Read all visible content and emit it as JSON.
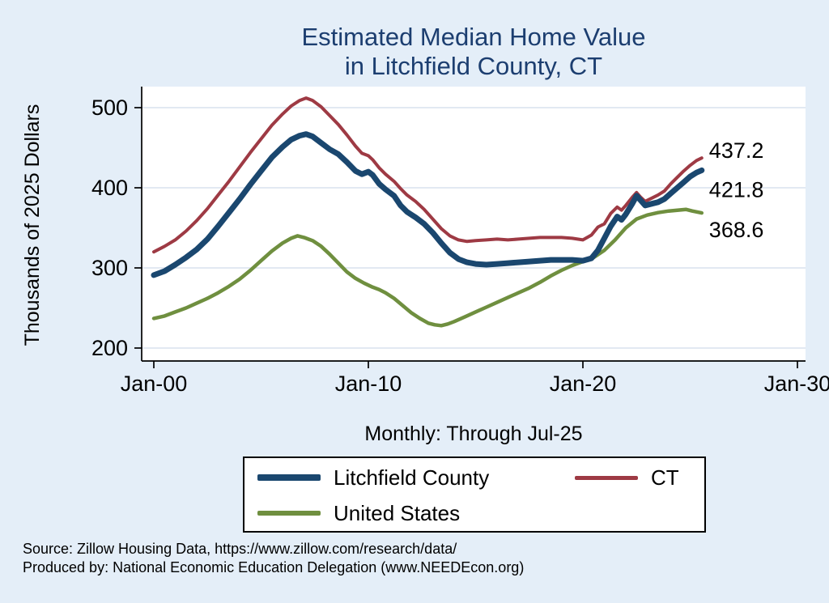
{
  "page": {
    "background": "#e4eef8"
  },
  "title": {
    "line1": "Estimated Median Home Value",
    "line2": "in Litchfield County, CT",
    "color": "#1c3e70"
  },
  "notes": {
    "line1": "Source: Zillow Housing Data, https://www.zillow.com/research/data/",
    "line2": "Produced by: National Economic Education Delegation (www.NEEDEcon.org)"
  },
  "chart_data": {
    "type": "line",
    "title": "Estimated Median Home Value in Litchfield County, CT",
    "subtitle": "Monthly: Through Jul-25",
    "ylabel": "Thousands of 2025 Dollars",
    "xlabel": "",
    "x_range_years": [
      2000,
      2030
    ],
    "y_ticks": [
      200,
      300,
      400,
      500
    ],
    "x_ticks": [
      {
        "year": 2000,
        "label": "Jan-00"
      },
      {
        "year": 2010,
        "label": "Jan-10"
      },
      {
        "year": 2020,
        "label": "Jan-20"
      },
      {
        "year": 2030,
        "label": "Jan-30"
      }
    ],
    "grid": "horizontal",
    "legend_position": "bottom",
    "series": [
      {
        "name": "Litchfield County",
        "color": "#1a476f",
        "line_width": 7,
        "end_label": "421.8",
        "points": [
          [
            2000.0,
            291
          ],
          [
            2000.5,
            296
          ],
          [
            2001.0,
            304
          ],
          [
            2001.5,
            313
          ],
          [
            2002.0,
            323
          ],
          [
            2002.5,
            336
          ],
          [
            2003.0,
            352
          ],
          [
            2003.5,
            369
          ],
          [
            2004.0,
            386
          ],
          [
            2004.5,
            404
          ],
          [
            2005.0,
            421
          ],
          [
            2005.5,
            438
          ],
          [
            2006.0,
            451
          ],
          [
            2006.4,
            460
          ],
          [
            2006.8,
            465
          ],
          [
            2007.1,
            467
          ],
          [
            2007.4,
            464
          ],
          [
            2007.8,
            456
          ],
          [
            2008.2,
            448
          ],
          [
            2008.6,
            442
          ],
          [
            2009.0,
            432
          ],
          [
            2009.4,
            421
          ],
          [
            2009.7,
            417
          ],
          [
            2010.0,
            420
          ],
          [
            2010.2,
            416
          ],
          [
            2010.5,
            405
          ],
          [
            2010.8,
            398
          ],
          [
            2011.2,
            390
          ],
          [
            2011.5,
            378
          ],
          [
            2011.8,
            370
          ],
          [
            2012.2,
            363
          ],
          [
            2012.6,
            355
          ],
          [
            2013.0,
            344
          ],
          [
            2013.4,
            331
          ],
          [
            2013.8,
            319
          ],
          [
            2014.2,
            311
          ],
          [
            2014.6,
            307
          ],
          [
            2015.0,
            305
          ],
          [
            2015.5,
            304
          ],
          [
            2016.0,
            305
          ],
          [
            2016.5,
            306
          ],
          [
            2017.0,
            307
          ],
          [
            2017.5,
            308
          ],
          [
            2018.0,
            309
          ],
          [
            2018.5,
            310
          ],
          [
            2019.0,
            310
          ],
          [
            2019.5,
            310
          ],
          [
            2020.0,
            309
          ],
          [
            2020.4,
            312
          ],
          [
            2020.7,
            322
          ],
          [
            2021.0,
            337
          ],
          [
            2021.3,
            352
          ],
          [
            2021.6,
            364
          ],
          [
            2021.8,
            360
          ],
          [
            2022.0,
            367
          ],
          [
            2022.3,
            380
          ],
          [
            2022.5,
            390
          ],
          [
            2022.7,
            384
          ],
          [
            2022.9,
            378
          ],
          [
            2023.2,
            380
          ],
          [
            2023.5,
            382
          ],
          [
            2023.8,
            386
          ],
          [
            2024.1,
            393
          ],
          [
            2024.4,
            400
          ],
          [
            2024.7,
            407
          ],
          [
            2025.0,
            414
          ],
          [
            2025.3,
            419
          ],
          [
            2025.54,
            421.8
          ]
        ]
      },
      {
        "name": "CT",
        "color": "#9e3a44",
        "line_width": 4,
        "end_label": "437.2",
        "points": [
          [
            2000.0,
            320
          ],
          [
            2000.5,
            327
          ],
          [
            2001.0,
            335
          ],
          [
            2001.5,
            346
          ],
          [
            2002.0,
            359
          ],
          [
            2002.5,
            374
          ],
          [
            2003.0,
            391
          ],
          [
            2003.5,
            408
          ],
          [
            2004.0,
            426
          ],
          [
            2004.5,
            444
          ],
          [
            2005.0,
            461
          ],
          [
            2005.5,
            478
          ],
          [
            2006.0,
            492
          ],
          [
            2006.4,
            502
          ],
          [
            2006.8,
            509
          ],
          [
            2007.1,
            512
          ],
          [
            2007.4,
            509
          ],
          [
            2007.8,
            501
          ],
          [
            2008.2,
            490
          ],
          [
            2008.6,
            479
          ],
          [
            2009.0,
            466
          ],
          [
            2009.4,
            452
          ],
          [
            2009.7,
            443
          ],
          [
            2010.0,
            440
          ],
          [
            2010.2,
            435
          ],
          [
            2010.5,
            425
          ],
          [
            2010.8,
            417
          ],
          [
            2011.2,
            408
          ],
          [
            2011.5,
            399
          ],
          [
            2011.8,
            391
          ],
          [
            2012.2,
            383
          ],
          [
            2012.6,
            373
          ],
          [
            2013.0,
            361
          ],
          [
            2013.4,
            349
          ],
          [
            2013.8,
            340
          ],
          [
            2014.2,
            335
          ],
          [
            2014.6,
            333
          ],
          [
            2015.0,
            334
          ],
          [
            2015.5,
            335
          ],
          [
            2016.0,
            336
          ],
          [
            2016.5,
            335
          ],
          [
            2017.0,
            336
          ],
          [
            2017.5,
            337
          ],
          [
            2018.0,
            338
          ],
          [
            2018.5,
            338
          ],
          [
            2019.0,
            338
          ],
          [
            2019.5,
            337
          ],
          [
            2020.0,
            335
          ],
          [
            2020.4,
            341
          ],
          [
            2020.7,
            351
          ],
          [
            2021.0,
            355
          ],
          [
            2021.3,
            368
          ],
          [
            2021.6,
            376
          ],
          [
            2021.8,
            372
          ],
          [
            2022.0,
            378
          ],
          [
            2022.3,
            388
          ],
          [
            2022.5,
            394
          ],
          [
            2022.7,
            388
          ],
          [
            2022.9,
            383
          ],
          [
            2023.2,
            387
          ],
          [
            2023.5,
            391
          ],
          [
            2023.8,
            396
          ],
          [
            2024.1,
            405
          ],
          [
            2024.4,
            413
          ],
          [
            2024.7,
            421
          ],
          [
            2025.0,
            428
          ],
          [
            2025.3,
            434
          ],
          [
            2025.54,
            437.2
          ]
        ]
      },
      {
        "name": "United States",
        "color": "#6f8f3f",
        "line_width": 4.5,
        "end_label": "368.6",
        "points": [
          [
            2000.0,
            237
          ],
          [
            2000.5,
            240
          ],
          [
            2001.0,
            245
          ],
          [
            2001.5,
            250
          ],
          [
            2002.0,
            256
          ],
          [
            2002.5,
            262
          ],
          [
            2003.0,
            269
          ],
          [
            2003.5,
            277
          ],
          [
            2004.0,
            286
          ],
          [
            2004.5,
            297
          ],
          [
            2005.0,
            309
          ],
          [
            2005.5,
            321
          ],
          [
            2006.0,
            331
          ],
          [
            2006.4,
            337
          ],
          [
            2006.7,
            340
          ],
          [
            2007.0,
            338
          ],
          [
            2007.4,
            334
          ],
          [
            2007.8,
            327
          ],
          [
            2008.2,
            317
          ],
          [
            2008.6,
            306
          ],
          [
            2009.0,
            295
          ],
          [
            2009.4,
            287
          ],
          [
            2009.8,
            281
          ],
          [
            2010.2,
            276
          ],
          [
            2010.5,
            273
          ],
          [
            2010.8,
            269
          ],
          [
            2011.2,
            262
          ],
          [
            2011.6,
            253
          ],
          [
            2012.0,
            244
          ],
          [
            2012.4,
            237
          ],
          [
            2012.8,
            231
          ],
          [
            2013.1,
            229
          ],
          [
            2013.4,
            228
          ],
          [
            2013.7,
            230
          ],
          [
            2014.0,
            233
          ],
          [
            2014.5,
            239
          ],
          [
            2015.0,
            245
          ],
          [
            2015.5,
            251
          ],
          [
            2016.0,
            257
          ],
          [
            2016.5,
            263
          ],
          [
            2017.0,
            269
          ],
          [
            2017.5,
            275
          ],
          [
            2018.0,
            282
          ],
          [
            2018.5,
            290
          ],
          [
            2019.0,
            297
          ],
          [
            2019.5,
            303
          ],
          [
            2020.0,
            308
          ],
          [
            2020.5,
            313
          ],
          [
            2021.0,
            322
          ],
          [
            2021.5,
            335
          ],
          [
            2022.0,
            350
          ],
          [
            2022.5,
            361
          ],
          [
            2023.0,
            366
          ],
          [
            2023.5,
            369
          ],
          [
            2024.0,
            371
          ],
          [
            2024.4,
            372
          ],
          [
            2024.8,
            373
          ],
          [
            2025.1,
            371
          ],
          [
            2025.54,
            368.6
          ]
        ]
      }
    ]
  }
}
